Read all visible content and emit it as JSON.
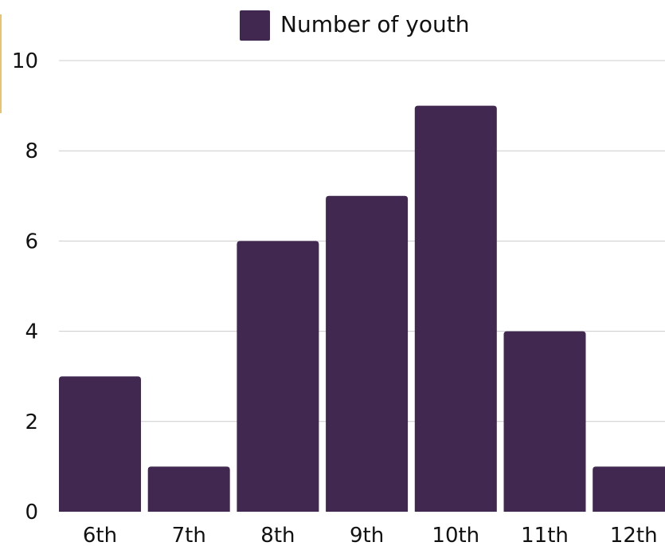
{
  "chart_data": {
    "type": "bar",
    "categories": [
      "6th",
      "7th",
      "8th",
      "9th",
      "10th",
      "11th",
      "12th"
    ],
    "series": [
      {
        "name": "Number of youth",
        "values": [
          3,
          1,
          6,
          7,
          9,
          4,
          1
        ]
      }
    ],
    "ylim": [
      0,
      10
    ],
    "yticks": [
      "0",
      "2",
      "4",
      "6",
      "8",
      "10"
    ],
    "grid": true,
    "legend_position": "top-center",
    "colors": {
      "bar": "#412850",
      "grid": "#cccccc",
      "accent": "#e9c46a"
    }
  }
}
